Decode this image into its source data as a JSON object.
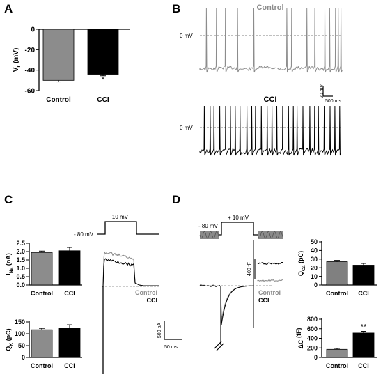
{
  "panels": {
    "A": "A",
    "B": "B",
    "C": "C",
    "D": "D"
  },
  "chart_data": [
    {
      "panel": "A",
      "type": "bar",
      "ylabel_main": "V",
      "ylabel_sub": "r",
      "ylabel_unit": "(mV)",
      "ylim": [
        -60,
        0
      ],
      "yticks": [
        "0",
        "-20",
        "-40",
        "-60"
      ],
      "categories": [
        "Control",
        "CCI"
      ],
      "values": [
        -50,
        -44
      ],
      "errors": [
        1.5,
        1.5
      ],
      "colors": [
        "#8c8c8c",
        "#000000"
      ],
      "significance": [
        "",
        "*"
      ]
    },
    {
      "panel": "B",
      "type": "line",
      "traces": [
        {
          "title": "Control",
          "color": "#8c8c8c",
          "zero_label": "0 mV"
        },
        {
          "title": "CCI",
          "color": "#000000",
          "zero_label": "0 mV"
        }
      ],
      "scalebar": {
        "v": "20 mV",
        "h": "500 ms"
      }
    },
    {
      "panel": "C-INa",
      "type": "bar",
      "ylabel_main": "I",
      "ylabel_sub": "Na",
      "ylabel_unit": "(nA)",
      "ylim": [
        0,
        2.5
      ],
      "yticks": [
        "0.0",
        "0.5",
        "1.0",
        "1.5",
        "2.0",
        "2.5"
      ],
      "categories": [
        "Control",
        "CCI"
      ],
      "values": [
        1.95,
        2.05
      ],
      "errors": [
        0.08,
        0.2
      ],
      "colors": [
        "#8c8c8c",
        "#000000"
      ],
      "significance": [
        "",
        ""
      ]
    },
    {
      "panel": "C-QK",
      "type": "bar",
      "ylabel_main": "Q",
      "ylabel_sub": "K",
      "ylabel_unit": "(pC)",
      "ylim": [
        0,
        150
      ],
      "yticks": [
        "0",
        "50",
        "100",
        "150"
      ],
      "categories": [
        "Control",
        "CCI"
      ],
      "values": [
        117,
        123
      ],
      "errors": [
        6,
        15
      ],
      "colors": [
        "#8c8c8c",
        "#000000"
      ],
      "significance": [
        "",
        ""
      ]
    },
    {
      "panel": "C-trace",
      "type": "line",
      "protocol": {
        "hold": "- 80 mV",
        "step": "+ 10 mV"
      },
      "legend": [
        {
          "label": "Control",
          "color": "#8c8c8c"
        },
        {
          "label": "CCI",
          "color": "#000000"
        }
      ],
      "scalebar": {
        "v": "500 pA",
        "h": "50 ms"
      }
    },
    {
      "panel": "D-trace",
      "type": "line",
      "protocol": {
        "hold": "- 80 mV",
        "step": "+ 10 mV"
      },
      "inset_scale": "400 fF",
      "legend": [
        {
          "label": "Control",
          "color": "#8c8c8c"
        },
        {
          "label": "CCI",
          "color": "#000000"
        }
      ]
    },
    {
      "panel": "D-QCa",
      "type": "bar",
      "ylabel_main": "Q",
      "ylabel_sub": "Ca",
      "ylabel_unit": "(pC)",
      "ylim": [
        0,
        50
      ],
      "yticks": [
        "0",
        "10",
        "20",
        "30",
        "40",
        "50"
      ],
      "categories": [
        "Control",
        "CCI"
      ],
      "values": [
        27,
        23
      ],
      "errors": [
        1.5,
        2
      ],
      "colors": [
        "#808080",
        "#000000"
      ],
      "significance": [
        "",
        ""
      ]
    },
    {
      "panel": "D-dC",
      "type": "bar",
      "ylabel_main": "ΔC",
      "ylabel_sub": "",
      "ylabel_unit": "(fF)",
      "ylim": [
        0,
        800
      ],
      "yticks": [
        "0",
        "200",
        "400",
        "600",
        "800"
      ],
      "categories": [
        "Control",
        "CCI"
      ],
      "values": [
        170,
        510
      ],
      "errors": [
        20,
        35
      ],
      "colors": [
        "#8c8c8c",
        "#000000"
      ],
      "significance": [
        "",
        "**"
      ]
    }
  ]
}
